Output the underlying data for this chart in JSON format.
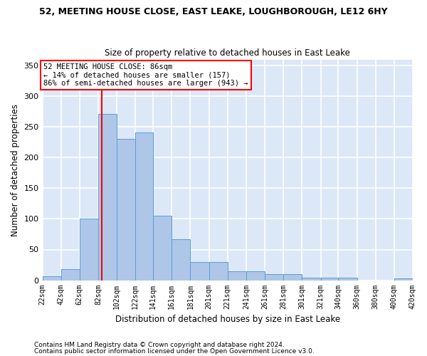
{
  "title": "52, MEETING HOUSE CLOSE, EAST LEAKE, LOUGHBOROUGH, LE12 6HY",
  "subtitle": "Size of property relative to detached houses in East Leake",
  "xlabel": "Distribution of detached houses by size in East Leake",
  "ylabel": "Number of detached properties",
  "bar_color": "#aec6e8",
  "bar_edge_color": "#5a9fd4",
  "bg_color": "#dce8f8",
  "grid_color": "white",
  "vline_x": 86,
  "vline_color": "red",
  "annotation_text": "52 MEETING HOUSE CLOSE: 86sqm\n← 14% of detached houses are smaller (157)\n86% of semi-detached houses are larger (943) →",
  "annotation_box_color": "white",
  "annotation_box_edge": "red",
  "bins": [
    22,
    42,
    62,
    82,
    102,
    122,
    141,
    161,
    181,
    201,
    221,
    241,
    261,
    281,
    301,
    321,
    340,
    360,
    380,
    400,
    420
  ],
  "counts": [
    7,
    18,
    100,
    271,
    231,
    241,
    105,
    67,
    30,
    30,
    15,
    15,
    10,
    10,
    4,
    4,
    4,
    0,
    0,
    3
  ],
  "ylim": [
    0,
    360
  ],
  "yticks": [
    0,
    50,
    100,
    150,
    200,
    250,
    300,
    350
  ],
  "footnote1": "Contains HM Land Registry data © Crown copyright and database right 2024.",
  "footnote2": "Contains public sector information licensed under the Open Government Licence v3.0."
}
